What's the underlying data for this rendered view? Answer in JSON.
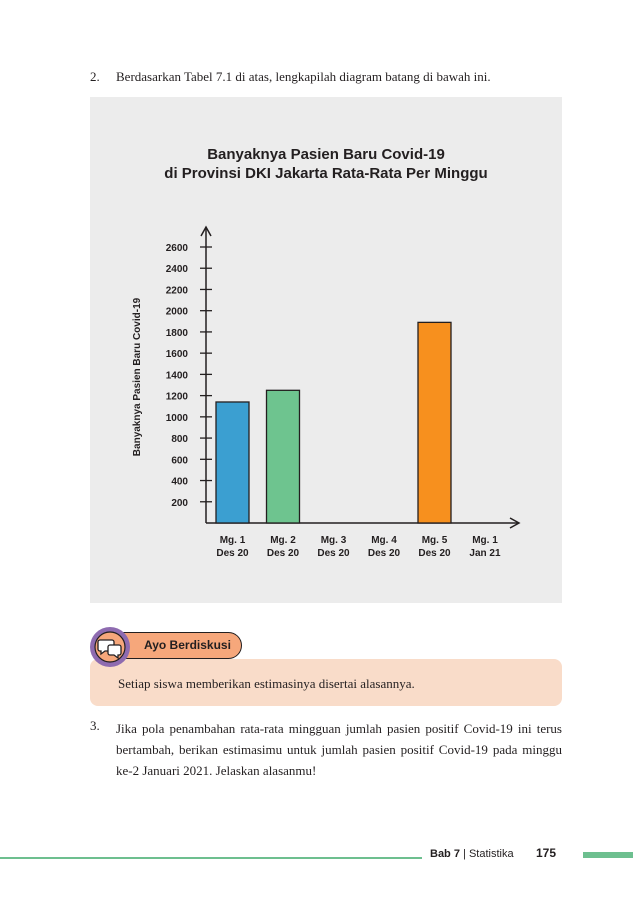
{
  "question2": {
    "number": "2.",
    "text": "Berdasarkan Tabel 7.1 di atas, lengkapilah diagram batang di bawah ini."
  },
  "chart_data": {
    "type": "bar",
    "title_line1": "Banyaknya Pasien Baru Covid-19",
    "title_line2": "di Provinsi DKI Jakarta Rata-Rata Per Minggu",
    "ylabel": "Banyaknya Pasien Baru Covid-19",
    "xlabel": "",
    "ylim": [
      0,
      2600
    ],
    "yticks": [
      200,
      400,
      600,
      800,
      1000,
      1200,
      1400,
      1600,
      1800,
      2000,
      2200,
      2400,
      2600
    ],
    "categories": [
      {
        "line1": "Mg. 1",
        "line2": "Des 20"
      },
      {
        "line1": "Mg. 2",
        "line2": "Des 20"
      },
      {
        "line1": "Mg. 3",
        "line2": "Des 20"
      },
      {
        "line1": "Mg. 4",
        "line2": "Des 20"
      },
      {
        "line1": "Mg. 5",
        "line2": "Des 20"
      },
      {
        "line1": "Mg. 1",
        "line2": "Jan 21"
      }
    ],
    "values": [
      1140,
      1250,
      null,
      null,
      1890,
      null
    ],
    "colors": [
      "#3b9fd1",
      "#6ec48f",
      null,
      null,
      "#f7901e",
      null
    ],
    "grid": false
  },
  "ayo": {
    "label": "Ayo Berdiskusi",
    "icon": "chat-bubbles-icon",
    "text": "Setiap siswa memberikan estimasinya disertai alasannya."
  },
  "question3": {
    "number": "3.",
    "text": "Jika pola penambahan rata-rata mingguan jumlah pasien positif Covid-19 ini terus bertambah, berikan estimasimu untuk jumlah pasien positif Covid-19 pada minggu ke-2 Januari 2021. Jelaskan alasanmu!"
  },
  "footer": {
    "chapter": "Bab 7",
    "separator": " | ",
    "section": "Statistika",
    "page": "175"
  },
  "colors": {
    "accent_green": "#6dbf8f",
    "panel_bg": "#ececec",
    "ayo_bg": "#f9dcc9",
    "ayo_tab": "#f6a77b"
  }
}
